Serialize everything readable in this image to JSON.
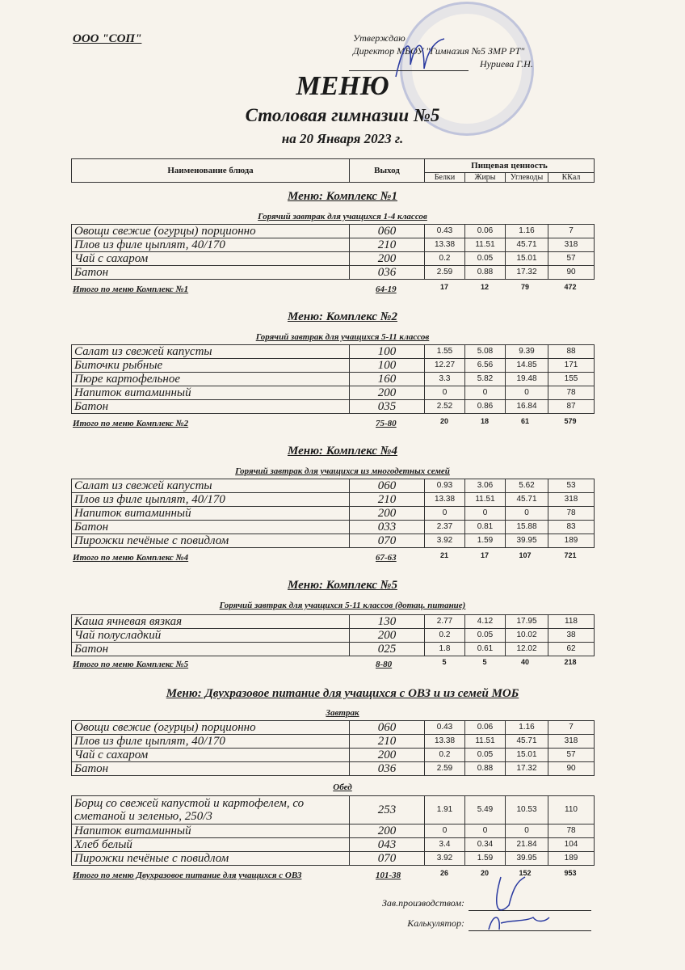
{
  "header": {
    "company": "ООО \"СОП\"",
    "approve": "Утверждаю",
    "director": "Директор МБОУ \"Гимназия №5 ЗМР РТ\"",
    "director_name": "Нуриева Г.Н.",
    "title": "МЕНЮ",
    "subtitle": "Столовая гимназии №5",
    "date": "на 20 Января 2023 г."
  },
  "columns": {
    "name": "Наименование блюда",
    "output": "Выход",
    "nutrition": "Пищевая ценность",
    "protein": "Белки",
    "fat": "Жиры",
    "carbs": "Углеводы",
    "kcal": "ККал"
  },
  "sections": [
    {
      "title": "Меню: Комплекс №1",
      "groups": [
        {
          "subtitle": "Горячий завтрак для учащихся 1-4 классов",
          "rows": [
            [
              "Овощи свежие (огурцы) порционно",
              "060",
              "0.43",
              "0.06",
              "1.16",
              "7"
            ],
            [
              "Плов из филе цыплят, 40/170",
              "210",
              "13.38",
              "11.51",
              "45.71",
              "318"
            ],
            [
              "Чай с сахаром",
              "200",
              "0.2",
              "0.05",
              "15.01",
              "57"
            ],
            [
              "Батон",
              "036",
              "2.59",
              "0.88",
              "17.32",
              "90"
            ]
          ]
        }
      ],
      "total": {
        "label": "Итого по меню Комплекс №1",
        "output": "64-19",
        "values": [
          "17",
          "12",
          "79",
          "472"
        ]
      }
    },
    {
      "title": "Меню: Комплекс №2",
      "groups": [
        {
          "subtitle": "Горячий завтрак для учащихся 5-11 классов",
          "rows": [
            [
              "Салат из свежей капусты",
              "100",
              "1.55",
              "5.08",
              "9.39",
              "88"
            ],
            [
              "Биточки рыбные",
              "100",
              "12.27",
              "6.56",
              "14.85",
              "171"
            ],
            [
              "Пюре картофельное",
              "160",
              "3.3",
              "5.82",
              "19.48",
              "155"
            ],
            [
              "Напиток витаминный",
              "200",
              "0",
              "0",
              "0",
              "78"
            ],
            [
              "Батон",
              "035",
              "2.52",
              "0.86",
              "16.84",
              "87"
            ]
          ]
        }
      ],
      "total": {
        "label": "Итого по меню Комплекс №2",
        "output": "75-80",
        "values": [
          "20",
          "18",
          "61",
          "579"
        ]
      }
    },
    {
      "title": "Меню: Комплекс №4",
      "groups": [
        {
          "subtitle": "Горячий завтрак для учащихся из многодетных семей",
          "rows": [
            [
              "Салат из свежей капусты",
              "060",
              "0.93",
              "3.06",
              "5.62",
              "53"
            ],
            [
              "Плов из филе цыплят, 40/170",
              "210",
              "13.38",
              "11.51",
              "45.71",
              "318"
            ],
            [
              "Напиток витаминный",
              "200",
              "0",
              "0",
              "0",
              "78"
            ],
            [
              "Батон",
              "033",
              "2.37",
              "0.81",
              "15.88",
              "83"
            ],
            [
              "Пирожки печёные с повидлом",
              "070",
              "3.92",
              "1.59",
              "39.95",
              "189"
            ]
          ]
        }
      ],
      "total": {
        "label": "Итого по меню Комплекс №4",
        "output": "67-63",
        "values": [
          "21",
          "17",
          "107",
          "721"
        ]
      }
    },
    {
      "title": "Меню: Комплекс №5",
      "groups": [
        {
          "subtitle": "Горячий завтрак для учащихся 5-11 классов (дотац. питание)",
          "rows": [
            [
              "Каша ячневая вязкая",
              "130",
              "2.77",
              "4.12",
              "17.95",
              "118"
            ],
            [
              "Чай полусладкий",
              "200",
              "0.2",
              "0.05",
              "10.02",
              "38"
            ],
            [
              "Батон",
              "025",
              "1.8",
              "0.61",
              "12.02",
              "62"
            ]
          ]
        }
      ],
      "total": {
        "label": "Итого по меню Комплекс №5",
        "output": "8-80",
        "values": [
          "5",
          "5",
          "40",
          "218"
        ]
      }
    },
    {
      "title": "Меню: Двухразовое питание для учащихся с ОВЗ и из семей МОБ",
      "groups": [
        {
          "subtitle": "Завтрак",
          "rows": [
            [
              "Овощи свежие (огурцы) порционно",
              "060",
              "0.43",
              "0.06",
              "1.16",
              "7"
            ],
            [
              "Плов из филе цыплят, 40/170",
              "210",
              "13.38",
              "11.51",
              "45.71",
              "318"
            ],
            [
              "Чай с сахаром",
              "200",
              "0.2",
              "0.05",
              "15.01",
              "57"
            ],
            [
              "Батон",
              "036",
              "2.59",
              "0.88",
              "17.32",
              "90"
            ]
          ]
        },
        {
          "subtitle": "Обед",
          "rows": [
            [
              "Борщ со свежей капустой и картофелем, со сметаной и зеленью, 250/3",
              "253",
              "1.91",
              "5.49",
              "10.53",
              "110"
            ],
            [
              "Напиток витаминный",
              "200",
              "0",
              "0",
              "0",
              "78"
            ],
            [
              "Хлеб белый",
              "043",
              "3.4",
              "0.34",
              "21.84",
              "104"
            ],
            [
              "Пирожки печёные с повидлом",
              "070",
              "3.92",
              "1.59",
              "39.95",
              "189"
            ]
          ]
        }
      ],
      "total": {
        "label": "Итого по меню Двухразовое питание для учащихся с ОВЗ",
        "output": "101-38",
        "values": [
          "26",
          "20",
          "152",
          "953"
        ]
      }
    }
  ],
  "footer": {
    "production_head": "Зав.производством:",
    "calculator": "Калькулятор:"
  }
}
